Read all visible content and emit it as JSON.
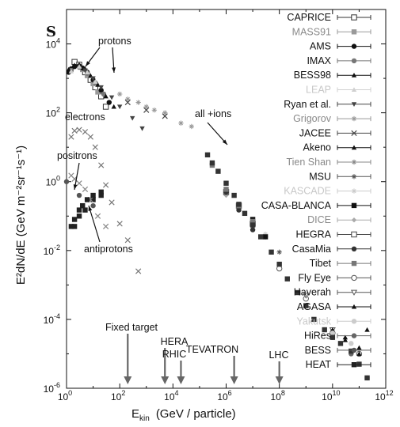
{
  "chart_data": {
    "type": "scatter",
    "panel_label": "S",
    "xlabel_main": "E",
    "xlabel_sub": "kin",
    "xlabel_rest": "(GeV / particle)",
    "ylabel_text": "E²dN/dE   (GeV m⁻²sr⁻¹s⁻¹)",
    "x_scale": "log",
    "y_scale": "log",
    "xlim": [
      1,
      1000000000000
    ],
    "ylim": [
      1e-06,
      100000
    ],
    "x_ticks": [
      {
        "value": 1,
        "base": "10",
        "exp": "0"
      },
      {
        "value": 100,
        "base": "10",
        "exp": "2"
      },
      {
        "value": 10000,
        "base": "10",
        "exp": "4"
      },
      {
        "value": 1000000,
        "base": "10",
        "exp": "6"
      },
      {
        "value": 100000000,
        "base": "10",
        "exp": "8"
      },
      {
        "value": 10000000000,
        "base": "10",
        "exp": "10"
      },
      {
        "value": 1000000000000,
        "base": "10",
        "exp": "12"
      }
    ],
    "y_ticks": [
      {
        "value": 10000,
        "base": "10",
        "exp": "4"
      },
      {
        "value": 100,
        "base": "10",
        "exp": "2"
      },
      {
        "value": 1,
        "base": "10",
        "exp": "0"
      },
      {
        "value": 0.01,
        "base": "10",
        "exp": "-2"
      },
      {
        "value": 0.0001,
        "base": "10",
        "exp": "-4"
      },
      {
        "value": 1e-06,
        "base": "10",
        "exp": "-6"
      }
    ],
    "legend_placement": "right",
    "series": [
      {
        "name": "CAPRICE",
        "color": "#333333",
        "marker": "square-open",
        "points": [
          [
            2,
            3000
          ],
          [
            3,
            2500
          ],
          [
            5,
            1500
          ],
          [
            8,
            900
          ],
          [
            12,
            550
          ],
          [
            20,
            300
          ],
          [
            30,
            150
          ]
        ]
      },
      {
        "name": "MASS91",
        "color": "#999999",
        "marker": "square",
        "points": [
          [
            4,
            1800
          ],
          [
            6,
            1200
          ],
          [
            10,
            700
          ],
          [
            15,
            400
          ]
        ]
      },
      {
        "name": "AMS",
        "color": "#111111",
        "marker": "circle",
        "points": [
          [
            1.2,
            1500
          ],
          [
            1.5,
            1900
          ],
          [
            2,
            2200
          ],
          [
            3,
            2300
          ],
          [
            4,
            2000
          ],
          [
            6,
            1500
          ],
          [
            10,
            900
          ],
          [
            20,
            450
          ],
          [
            40,
            200
          ]
        ]
      },
      {
        "name": "IMAX",
        "color": "#777777",
        "marker": "circle",
        "points": [
          [
            1.5,
            1700
          ],
          [
            3,
            2100
          ],
          [
            6,
            1400
          ],
          [
            12,
            750
          ],
          [
            25,
            350
          ]
        ]
      },
      {
        "name": "BESS98",
        "color": "#111111",
        "marker": "triangle",
        "points": [
          [
            1.2,
            1800
          ],
          [
            2,
            2400
          ],
          [
            3,
            2500
          ],
          [
            5,
            1900
          ],
          [
            8,
            1200
          ],
          [
            15,
            650
          ],
          [
            30,
            300
          ],
          [
            60,
            150
          ]
        ]
      },
      {
        "name": "LEAP",
        "color": "#d0d0d0",
        "marker": "triangle",
        "points": [
          [
            1.5,
            1600
          ],
          [
            3,
            2200
          ],
          [
            6,
            1500
          ],
          [
            12,
            800
          ]
        ]
      },
      {
        "name": "Ryan et al.",
        "color": "#444444",
        "marker": "triangle-down",
        "points": [
          [
            5,
            1700
          ],
          [
            10,
            1000
          ],
          [
            20,
            550
          ],
          [
            50,
            280
          ],
          [
            100,
            150
          ],
          [
            300,
            70
          ],
          [
            700,
            35
          ]
        ]
      },
      {
        "name": "Grigorov",
        "color": "#999999",
        "marker": "star",
        "points": [
          [
            100,
            350
          ],
          [
            200,
            250
          ],
          [
            500,
            200
          ],
          [
            1000,
            150
          ],
          [
            2000,
            120
          ],
          [
            5000,
            100
          ],
          [
            20000,
            50
          ],
          [
            50000,
            40
          ]
        ]
      },
      {
        "name": "JACEE",
        "color": "#444444",
        "marker": "cross",
        "points": [
          [
            200,
            200
          ],
          [
            1000,
            120
          ],
          [
            5000,
            80
          ]
        ]
      },
      {
        "name": "Akeno",
        "color": "#111111",
        "marker": "triangle",
        "points": [
          [
            10000000000,
            5e-05
          ],
          [
            30000000000,
            3e-05
          ],
          [
            100000000000,
            1.5e-05
          ]
        ]
      },
      {
        "name": "Tien Shan",
        "color": "#888888",
        "marker": "star",
        "points": [
          [
            1000000,
            0.6
          ],
          [
            3000000,
            0.2
          ],
          [
            10000000,
            0.07
          ]
        ]
      },
      {
        "name": "MSU",
        "color": "#555555",
        "marker": "star",
        "points": [
          [
            10000000,
            0.06
          ],
          [
            30000000,
            0.025
          ],
          [
            100000000,
            0.009
          ]
        ]
      },
      {
        "name": "KASCADE",
        "color": "#cccccc",
        "marker": "star",
        "points": [
          [
            1000000,
            0.5
          ],
          [
            3000000,
            0.2
          ],
          [
            10000000,
            0.08
          ],
          [
            30000000,
            0.03
          ]
        ]
      },
      {
        "name": "CASA-BLANCA",
        "color": "#111111",
        "marker": "square",
        "points": [
          [
            3000000,
            0.2
          ],
          [
            10000000,
            0.08
          ],
          [
            30000000,
            0.025
          ]
        ]
      },
      {
        "name": "DICE",
        "color": "#aaaaaa",
        "marker": "diamond",
        "points": [
          [
            1000000,
            0.4
          ],
          [
            3000000,
            0.15
          ],
          [
            10000000,
            0.05
          ]
        ]
      },
      {
        "name": "HEGRA",
        "color": "#444444",
        "marker": "square-open",
        "points": [
          [
            1000000,
            0.5
          ],
          [
            3000000,
            0.2
          ],
          [
            10000000,
            0.06
          ]
        ]
      },
      {
        "name": "CasaMia",
        "color": "#333333",
        "marker": "circle",
        "points": [
          [
            1000000,
            0.5
          ],
          [
            3000000,
            0.15
          ],
          [
            10000000,
            0.04
          ]
        ]
      },
      {
        "name": "Tibet",
        "color": "#777777",
        "marker": "square",
        "points": [
          [
            300000,
            3
          ],
          [
            1000000,
            0.6
          ],
          [
            3000000,
            0.2
          ],
          [
            10000000,
            0.07
          ]
        ]
      },
      {
        "name": "Fly Eye",
        "color": "#555555",
        "marker": "circle-open",
        "points": [
          [
            100000000,
            0.003
          ],
          [
            1000000000,
            0.0004
          ],
          [
            10000000000,
            4e-05
          ],
          [
            100000000000,
            1e-05
          ]
        ]
      },
      {
        "name": "Haverah",
        "color": "#555555",
        "marker": "triangle-down-open",
        "points": [
          [
            1000000000,
            0.0005
          ],
          [
            10000000000,
            5e-05
          ]
        ]
      },
      {
        "name": "AGASA",
        "color": "#111111",
        "marker": "triangle",
        "points": [
          [
            10000000000,
            5e-05
          ],
          [
            30000000000,
            2.5e-05
          ],
          [
            100000000000,
            1e-05
          ],
          [
            200000000000,
            5e-05
          ]
        ]
      },
      {
        "name": "Yakutsk",
        "color": "#cccccc",
        "marker": "circle",
        "points": [
          [
            10000000000,
            4e-05
          ],
          [
            50000000000,
            2e-05
          ]
        ]
      },
      {
        "name": "HiRes",
        "color": "#666666",
        "marker": "circle",
        "points": [
          [
            10000000000,
            3e-05
          ],
          [
            50000000000,
            1e-05
          ],
          [
            200000000000,
            2e-06
          ]
        ]
      },
      {
        "name": "BESS",
        "color": "#555555",
        "marker": "circle",
        "points": [
          [
            1,
            1
          ],
          [
            3,
            0.4
          ],
          [
            10,
            0.2
          ]
        ]
      },
      {
        "name": "HEAT",
        "color": "#222222",
        "marker": "square",
        "points": [
          [
            2,
            0.05
          ],
          [
            3,
            0.1
          ],
          [
            5,
            0.15
          ],
          [
            10,
            0.3
          ],
          [
            20,
            0.4
          ]
        ]
      },
      {
        "name": "all +ions",
        "color": "#333333",
        "marker": "square",
        "points": [
          [
            200000,
            6
          ],
          [
            300000,
            3.5
          ],
          [
            500000,
            2
          ],
          [
            1000000,
            0.9
          ],
          [
            2000000,
            0.4
          ],
          [
            3000000,
            0.22
          ],
          [
            5000000,
            0.12
          ],
          [
            10000000,
            0.055
          ],
          [
            20000000,
            0.025
          ],
          [
            50000000,
            0.009
          ],
          [
            100000000,
            0.004
          ],
          [
            200000000,
            0.0015
          ],
          [
            500000000,
            0.0006
          ],
          [
            1000000000,
            0.00025
          ],
          [
            2000000000,
            0.0001
          ],
          [
            5000000000,
            5e-05
          ],
          [
            10000000000,
            3e-05
          ],
          [
            20000000000,
            2e-05
          ],
          [
            50000000000,
            1.2e-05
          ],
          [
            100000000000,
            5e-06
          ],
          [
            200000000000,
            2e-06
          ]
        ]
      },
      {
        "name": "electrons",
        "color": "#777777",
        "marker": "cross",
        "points": [
          [
            1.5,
            20
          ],
          [
            2,
            30
          ],
          [
            3,
            32
          ],
          [
            5,
            28
          ],
          [
            8,
            20
          ],
          [
            12,
            10
          ],
          [
            20,
            3
          ],
          [
            30,
            0.8
          ],
          [
            50,
            0.25
          ],
          [
            100,
            0.06
          ],
          [
            200,
            0.02
          ],
          [
            500,
            0.0025
          ]
        ]
      },
      {
        "name": "positrons",
        "color": "#888888",
        "marker": "cross",
        "points": [
          [
            1.5,
            1.5
          ],
          [
            2,
            1.2
          ],
          [
            3,
            0.9
          ],
          [
            5,
            0.6
          ],
          [
            8,
            0.3
          ],
          [
            15,
            0.1
          ],
          [
            30,
            0.05
          ]
        ]
      },
      {
        "name": "antiprotons",
        "color": "#222222",
        "marker": "square",
        "points": [
          [
            1.5,
            0.05
          ],
          [
            2,
            0.08
          ],
          [
            3,
            0.15
          ],
          [
            4,
            0.2
          ],
          [
            6,
            0.3
          ],
          [
            10,
            0.4
          ],
          [
            20,
            0.5
          ]
        ]
      }
    ],
    "curve_labels": [
      {
        "text": "protons",
        "tip_x": 6,
        "tip_y": 1500
      },
      {
        "text": "electrons",
        "tip_x": null,
        "tip_y": null
      },
      {
        "text": "positrons",
        "tip_x": 2.5,
        "tip_y": 0.3
      },
      {
        "text": "all +ions",
        "tip_x": 300000,
        "tip_y": 8
      },
      {
        "text": "antiprotons",
        "tip_x": 5,
        "tip_y": 0.2
      }
    ],
    "markers": [
      {
        "text": "Fixed target",
        "x": 200
      },
      {
        "text": "HERA",
        "x": 5000
      },
      {
        "text": "RHIC",
        "x": 20000
      },
      {
        "text": "TEVATRON",
        "x": 2000000
      },
      {
        "text": "LHC",
        "x": 100000000
      }
    ]
  }
}
